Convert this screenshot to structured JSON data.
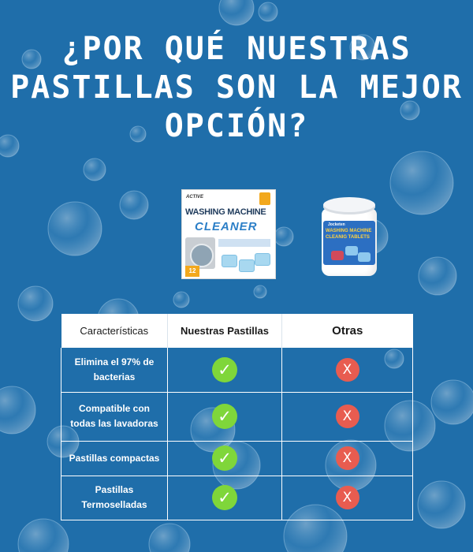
{
  "title_lines": [
    "¿Por qué nuestras",
    "pastillas son la mejor",
    "opción?"
  ],
  "products": {
    "ours": {
      "brand": "ACTIVE",
      "line1": "WASHING MACHINE",
      "line2": "CLEANER",
      "count": "12"
    },
    "others": {
      "brand": "Jocketen",
      "line1": "WASHING MACHINE",
      "line2": "CLEANIG TABLETS"
    }
  },
  "table": {
    "headers": [
      "Características",
      "Nuestras Pastillas",
      "Otras"
    ],
    "rows": [
      {
        "feature": "Elimina el 97% de bacterias",
        "ours": "check",
        "others": "cross"
      },
      {
        "feature": "Compatible con todas las lavadoras",
        "ours": "check",
        "others": "cross"
      },
      {
        "feature": "Pastillas compactas",
        "ours": "check",
        "others": "cross"
      },
      {
        "feature": "Pastillas Termoselladas",
        "ours": "check",
        "others": "cross"
      }
    ]
  },
  "icons": {
    "check": "✓",
    "cross": "X"
  },
  "colors": {
    "background": "#1f6eaa",
    "check": "#7fd63a",
    "cross": "#e85c50",
    "header": "#ffffff"
  }
}
